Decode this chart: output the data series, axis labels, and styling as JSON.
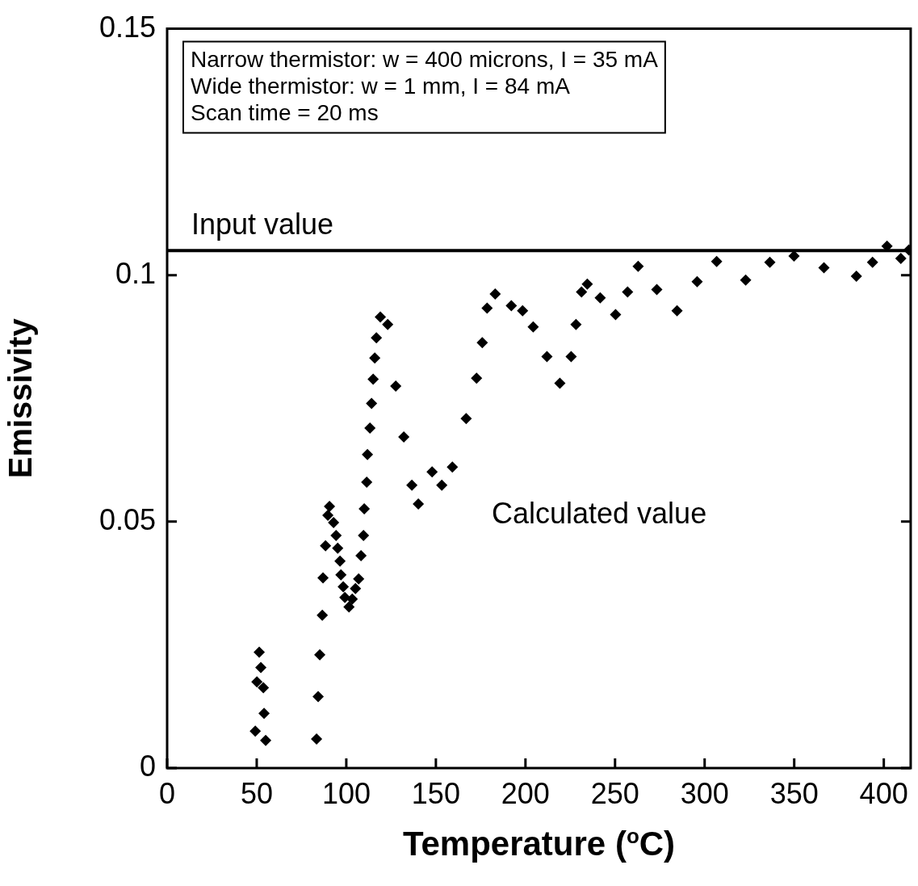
{
  "chart_data": {
    "type": "scatter",
    "xlabel": "Temperature ($^{o}$C)",
    "ylabel": "Emissivity",
    "xlim": [
      0,
      415
    ],
    "xticks": [
      0,
      50,
      100,
      150,
      200,
      250,
      300,
      350,
      400
    ],
    "ylim": [
      0,
      0.15
    ],
    "yticks": [
      0,
      0.05,
      0.1,
      0.15
    ],
    "marker": "diamond",
    "legend": false,
    "grid": false,
    "series": [
      {
        "color": "#000000",
        "x": [
          49.2,
          50.1,
          51.4,
          52.3,
          53.7,
          54.1,
          55.0,
          83.4,
          84.3,
          85.2,
          86.6,
          87.0,
          88.4,
          89.7,
          90.6,
          92.9,
          94.3,
          95.2,
          96.5,
          97.0,
          98.3,
          99.2,
          101.5,
          103.3,
          105.1,
          106.9,
          108.2,
          109.6,
          110.0,
          111.4,
          111.8,
          113.2,
          114.1,
          115.0,
          115.9,
          116.8,
          119.0,
          123.1,
          127.6,
          132.1,
          136.6,
          140.2,
          147.9,
          153.3,
          159.2,
          166.9,
          172.7,
          175.9,
          178.6,
          183.1,
          192.1,
          198.4,
          204.3,
          212.0,
          219.2,
          225.5,
          228.2,
          231.3,
          234.5,
          241.7,
          250.3,
          257.0,
          262.9,
          273.3,
          284.6,
          295.8,
          306.7,
          322.9,
          336.4,
          349.9,
          366.6,
          384.7,
          393.7,
          401.8,
          409.5,
          414.0
        ],
        "values": [
          0.0075,
          0.0175,
          0.0235,
          0.0204,
          0.0163,
          0.0111,
          0.0056,
          0.0059,
          0.0145,
          0.023,
          0.031,
          0.0386,
          0.0451,
          0.0513,
          0.0531,
          0.0498,
          0.0472,
          0.0446,
          0.042,
          0.0392,
          0.0368,
          0.0346,
          0.0327,
          0.0343,
          0.0364,
          0.0384,
          0.0431,
          0.0472,
          0.0526,
          0.058,
          0.0636,
          0.069,
          0.074,
          0.0789,
          0.0832,
          0.0873,
          0.0915,
          0.09,
          0.0775,
          0.0672,
          0.0574,
          0.0536,
          0.0601,
          0.0574,
          0.0611,
          0.0709,
          0.0791,
          0.0863,
          0.0933,
          0.0962,
          0.0938,
          0.0928,
          0.0895,
          0.0835,
          0.0781,
          0.0835,
          0.09,
          0.0966,
          0.0982,
          0.0954,
          0.092,
          0.0966,
          0.1018,
          0.0971,
          0.0928,
          0.0987,
          0.1028,
          0.099,
          0.1026,
          0.1039,
          0.1015,
          0.0998,
          0.1026,
          0.1059,
          0.1034,
          0.1051
        ]
      }
    ],
    "ref_lines": [
      {
        "axis": "y",
        "value": 0.105,
        "label": "Input value",
        "color": "#000000"
      }
    ],
    "annotations": [
      "Narrow thermistor: w = 400 microns, I = 35 mA",
      "Wide thermistor: w = 1 mm, I = 84 mA",
      "Scan time = 20 ms",
      "Calculated value"
    ]
  }
}
